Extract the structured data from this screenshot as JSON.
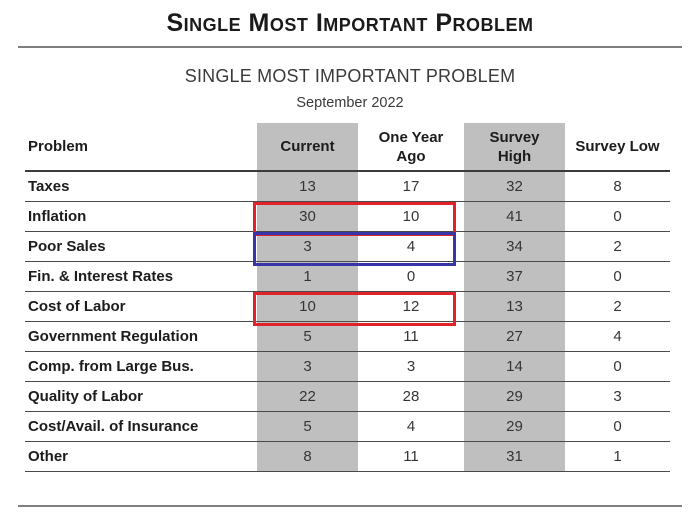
{
  "page": {
    "title": "Single Most Important Problem"
  },
  "report": {
    "table_title": "SINGLE MOST IMPORTANT PROBLEM",
    "date": "September 2022"
  },
  "table": {
    "columns": [
      "Problem",
      "Current",
      "One Year Ago",
      "Survey High",
      "Survey Low"
    ],
    "shaded_columns": [
      "Current",
      "Survey High"
    ],
    "shade_color": "#bfbfbf",
    "rows": [
      {
        "label": "Taxes",
        "values": [
          13,
          17,
          32,
          8
        ]
      },
      {
        "label": "Inflation",
        "values": [
          30,
          10,
          41,
          0
        ]
      },
      {
        "label": "Poor Sales",
        "values": [
          3,
          4,
          34,
          2
        ]
      },
      {
        "label": "Fin. & Interest Rates",
        "values": [
          1,
          0,
          37,
          0
        ]
      },
      {
        "label": "Cost of Labor",
        "values": [
          10,
          12,
          13,
          2
        ]
      },
      {
        "label": "Government Regulation",
        "values": [
          5,
          11,
          27,
          4
        ]
      },
      {
        "label": "Comp. from Large Bus.",
        "values": [
          3,
          3,
          14,
          0
        ]
      },
      {
        "label": "Quality of Labor",
        "values": [
          22,
          28,
          29,
          3
        ]
      },
      {
        "label": "Cost/Avail. of Insurance",
        "values": [
          5,
          4,
          29,
          0
        ]
      },
      {
        "label": "Other",
        "values": [
          8,
          11,
          31,
          1
        ]
      }
    ],
    "highlights": [
      {
        "row": "Inflation",
        "columns": [
          "Current",
          "One Year Ago"
        ],
        "color": "#e0222a"
      },
      {
        "row": "Poor Sales",
        "columns": [
          "Current",
          "One Year Ago"
        ],
        "color": "#3636a6"
      },
      {
        "row": "Cost of Labor",
        "columns": [
          "Current",
          "One Year Ago"
        ],
        "color": "#e0222a"
      }
    ]
  }
}
